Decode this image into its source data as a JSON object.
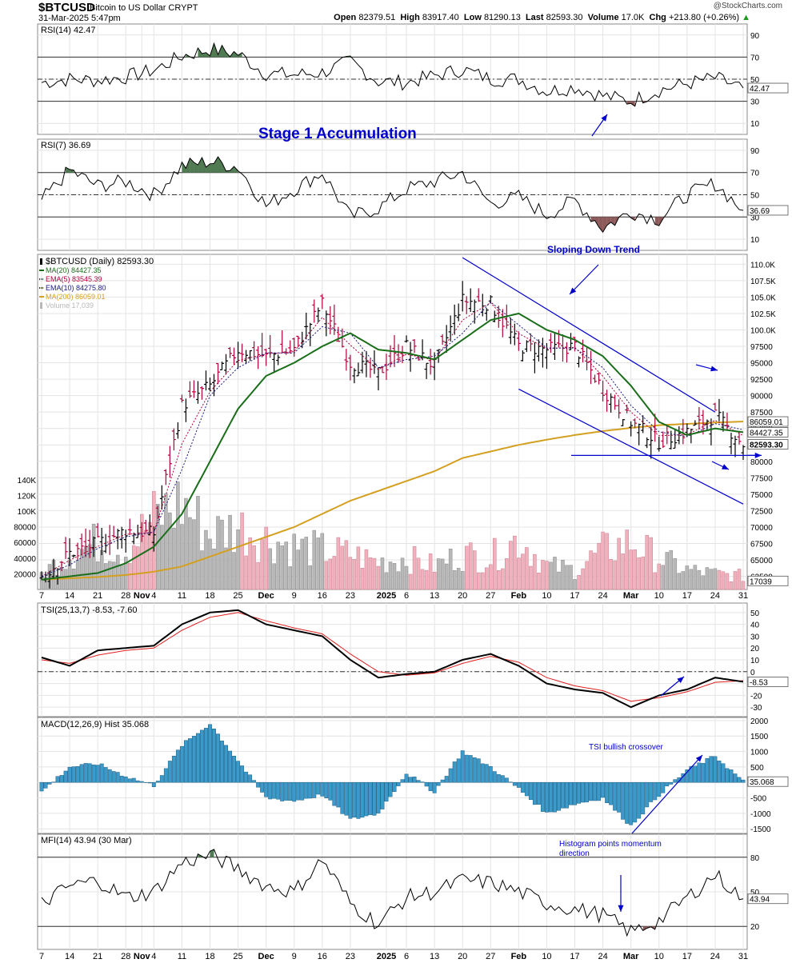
{
  "header": {
    "symbol": "$BTCUSD",
    "description": "Bitcoin to US Dollar  CRYPT",
    "datetime": "31-Mar-2025 5:47pm",
    "credit": "@StockCharts.com",
    "open_label": "Open",
    "open": "82379.51",
    "high_label": "High",
    "high": "83917.40",
    "low_label": "Low",
    "low": "81290.13",
    "last_label": "Last",
    "last": "82593.30",
    "volume_label": "Volume",
    "volume": "17.0K",
    "chg_label": "Chg",
    "chg": "+213.80 (+0.26%)"
  },
  "colors": {
    "up": "#000000",
    "down": "#b0003a",
    "ma20": "#1a6e1a",
    "ma200": "#d4a021",
    "ema5": "#b0003a",
    "ema10": "#1a1a80",
    "tsi": "#000000",
    "tsi_signal": "#e02020",
    "macd_hist": "#3b9ac9",
    "rsi_fill_up": "#4f7a52",
    "rsi_fill_down": "#8c5a5a",
    "vol_up": "#b8b8b8",
    "vol_down": "#f0b0bc",
    "annotation": "#0000cc"
  },
  "annotations": {
    "stage1": "Stage 1 Accumulation",
    "sloping": "Sloping Down Trend",
    "tsi_cross": "TSI bullish crossover",
    "hist1": "Histogram points momentum",
    "hist2": "direction"
  },
  "chart_data": [
    {
      "type": "line",
      "panel": "RSI(14)",
      "legend": "RSI(14) 42.47",
      "last_label": "42.47",
      "ylim": [
        0,
        100
      ],
      "yticks": [
        10,
        30,
        50,
        70,
        90
      ],
      "levels": [
        30,
        50,
        70
      ],
      "x": [
        "Oct 7",
        "Oct 14",
        "Oct 21",
        "Oct 28",
        "Nov 4",
        "Nov 11",
        "Nov 18",
        "Nov 25",
        "Dec 2",
        "Dec 9",
        "Dec 16",
        "Dec 23",
        "Dec 30",
        "Jan 6",
        "Jan 13",
        "Jan 20",
        "Jan 27",
        "Feb 3",
        "Feb 10",
        "Feb 17",
        "Feb 24",
        "Mar 3",
        "Mar 10",
        "Mar 17",
        "Mar 24",
        "Mar 31"
      ],
      "values": [
        47,
        50,
        49,
        52,
        58,
        71,
        77,
        73,
        55,
        54,
        56,
        66,
        48,
        47,
        53,
        59,
        50,
        50,
        39,
        43,
        35,
        30,
        40,
        46,
        51,
        42
      ]
    },
    {
      "type": "line",
      "panel": "RSI(7)",
      "legend": "RSI(7) 36.69",
      "last_label": "36.69",
      "ylim": [
        0,
        100
      ],
      "yticks": [
        10,
        30,
        50,
        70,
        90
      ],
      "levels": [
        30,
        50,
        70
      ],
      "x": [
        "Oct 7",
        "Oct 14",
        "Oct 21",
        "Oct 28",
        "Nov 4",
        "Nov 11",
        "Nov 18",
        "Nov 25",
        "Dec 2",
        "Dec 9",
        "Dec 16",
        "Dec 23",
        "Dec 30",
        "Jan 6",
        "Jan 13",
        "Jan 20",
        "Jan 27",
        "Feb 3",
        "Feb 10",
        "Feb 17",
        "Feb 24",
        "Mar 3",
        "Mar 10",
        "Mar 17",
        "Mar 24",
        "Mar 31"
      ],
      "values": [
        45,
        72,
        58,
        62,
        50,
        76,
        80,
        75,
        40,
        55,
        70,
        30,
        38,
        55,
        62,
        70,
        42,
        48,
        32,
        45,
        20,
        35,
        28,
        50,
        60,
        36
      ]
    },
    {
      "type": "candlestick",
      "panel": "price",
      "legend": [
        {
          "name": "$BTCUSD (Daily) 82593.30",
          "color": "#000000",
          "style": "bar"
        },
        {
          "name": "MA(20) 84427.35",
          "color": "#1a6e1a",
          "style": "solid"
        },
        {
          "name": "EMA(5) 83545.39",
          "color": "#b0003a",
          "style": "dotted"
        },
        {
          "name": "EMA(10) 84275.80",
          "color": "#1a1a80",
          "style": "dotted"
        },
        {
          "name": "MA(200) 86059.01",
          "color": "#d4a021",
          "style": "solid"
        },
        {
          "name": "Volume 17,039",
          "color": "#b8b8b8",
          "style": "bar"
        }
      ],
      "ylim": [
        60500,
        111500
      ],
      "yticks": [
        "110.0K",
        "107.5K",
        "105.0K",
        "102.5K",
        "100.0K",
        "97500",
        "95000",
        "92500",
        "90000",
        "87500",
        "85000",
        "82500",
        "80000",
        "77500",
        "75000",
        "72500",
        "70000",
        "67500",
        "65000",
        "62500"
      ],
      "ytick_values": [
        110000,
        107500,
        105000,
        102500,
        100000,
        97500,
        95000,
        92500,
        90000,
        87500,
        85000,
        82500,
        80000,
        77500,
        75000,
        72500,
        70000,
        67500,
        65000,
        62500
      ],
      "price_labels": {
        "ma200": "86059.01",
        "ma20": "84427.35",
        "last": "82593.30"
      },
      "horizontal_line": 80900,
      "channel_upper": [
        [
          "Jan 20",
          111000
        ],
        [
          "Mar 24",
          87500
        ]
      ],
      "channel_lower": [
        [
          "Feb 3",
          91000
        ],
        [
          "Mar 31",
          73500
        ]
      ],
      "x": [
        "Oct 7",
        "Oct 14",
        "Oct 21",
        "Oct 28",
        "Nov 4",
        "Nov 11",
        "Nov 18",
        "Nov 25",
        "Dec 2",
        "Dec 9",
        "Dec 16",
        "Dec 23",
        "Dec 30",
        "Jan 6",
        "Jan 13",
        "Jan 20",
        "Jan 27",
        "Feb 3",
        "Feb 10",
        "Feb 17",
        "Feb 24",
        "Mar 3",
        "Mar 10",
        "Mar 17",
        "Mar 24",
        "Mar 31"
      ],
      "close": [
        62500,
        66000,
        67500,
        69500,
        69000,
        88500,
        91500,
        97000,
        96000,
        97000,
        104000,
        95000,
        93500,
        97500,
        94500,
        104500,
        104000,
        97500,
        97000,
        97500,
        91000,
        86000,
        83000,
        84500,
        87000,
        82593
      ],
      "ma20": [
        62000,
        62500,
        63000,
        64500,
        67000,
        72000,
        80000,
        88000,
        93000,
        95000,
        97500,
        99500,
        97000,
        96500,
        95500,
        98500,
        101500,
        102500,
        100000,
        98500,
        96000,
        91500,
        86000,
        84000,
        85000,
        84427
      ],
      "ma200": [
        62000,
        62200,
        62400,
        62700,
        63200,
        64000,
        65500,
        67000,
        68500,
        70000,
        72000,
        74000,
        75500,
        77000,
        78500,
        80500,
        81500,
        82500,
        83300,
        84000,
        84600,
        85100,
        85500,
        85700,
        85900,
        86059
      ],
      "volume": [
        20000,
        45000,
        60000,
        50000,
        90000,
        110000,
        70000,
        80000,
        65000,
        55000,
        50000,
        45000,
        35000,
        40000,
        30000,
        45000,
        40000,
        65000,
        30000,
        25000,
        50000,
        60000,
        40000,
        25000,
        20000,
        17039
      ],
      "vol_yticks": [
        "140K",
        "120K",
        "100K",
        "80000",
        "60000",
        "40000",
        "20000"
      ],
      "vol_ytick_values": [
        140000,
        120000,
        100000,
        80000,
        60000,
        40000,
        20000
      ],
      "volume_label": "17039",
      "xticks": [
        {
          "label": "7",
          "x": "Oct 7"
        },
        {
          "label": "14",
          "x": "Oct 14"
        },
        {
          "label": "21",
          "x": "Oct 21"
        },
        {
          "label": "28",
          "x": "Oct 28"
        },
        {
          "label": "Nov",
          "x": "Nov 1",
          "bold": true
        },
        {
          "label": "4",
          "x": "Nov 4"
        },
        {
          "label": "11",
          "x": "Nov 11"
        },
        {
          "label": "18",
          "x": "Nov 18"
        },
        {
          "label": "25",
          "x": "Nov 25"
        },
        {
          "label": "Dec",
          "x": "Dec 2",
          "bold": true
        },
        {
          "label": "9",
          "x": "Dec 9"
        },
        {
          "label": "16",
          "x": "Dec 16"
        },
        {
          "label": "23",
          "x": "Dec 23"
        },
        {
          "label": "2025",
          "x": "Jan 1",
          "bold": true
        },
        {
          "label": "6",
          "x": "Jan 6"
        },
        {
          "label": "13",
          "x": "Jan 13"
        },
        {
          "label": "20",
          "x": "Jan 20"
        },
        {
          "label": "27",
          "x": "Jan 27"
        },
        {
          "label": "Feb",
          "x": "Feb 3",
          "bold": true
        },
        {
          "label": "10",
          "x": "Feb 10"
        },
        {
          "label": "17",
          "x": "Feb 17"
        },
        {
          "label": "24",
          "x": "Feb 24"
        },
        {
          "label": "Mar",
          "x": "Mar 3",
          "bold": true
        },
        {
          "label": "10",
          "x": "Mar 10"
        },
        {
          "label": "17",
          "x": "Mar 17"
        },
        {
          "label": "24",
          "x": "Mar 24"
        },
        {
          "label": "31",
          "x": "Mar 31"
        }
      ]
    },
    {
      "type": "line",
      "panel": "TSI",
      "legend": "TSI(25,13,7) -8.53, -7.60",
      "last_label": "-8.53",
      "ylim": [
        -38,
        58
      ],
      "yticks": [
        50,
        40,
        30,
        20,
        10,
        0,
        -10,
        -20,
        -30
      ],
      "levels": [
        0
      ],
      "x": [
        "Oct 7",
        "Oct 14",
        "Oct 21",
        "Oct 28",
        "Nov 4",
        "Nov 11",
        "Nov 18",
        "Nov 25",
        "Dec 2",
        "Dec 9",
        "Dec 16",
        "Dec 23",
        "Dec 30",
        "Jan 6",
        "Jan 13",
        "Jan 20",
        "Jan 27",
        "Feb 3",
        "Feb 10",
        "Feb 17",
        "Feb 24",
        "Mar 3",
        "Mar 10",
        "Mar 17",
        "Mar 24",
        "Mar 31"
      ],
      "series": [
        {
          "name": "TSI",
          "values": [
            12,
            5,
            18,
            20,
            22,
            40,
            50,
            52,
            40,
            35,
            30,
            10,
            -5,
            -2,
            0,
            10,
            15,
            5,
            -10,
            -15,
            -18,
            -30,
            -20,
            -15,
            -5,
            -8.53
          ]
        },
        {
          "name": "Signal",
          "values": [
            10,
            7,
            14,
            18,
            20,
            35,
            46,
            50,
            43,
            37,
            32,
            15,
            0,
            -3,
            -1,
            7,
            13,
            8,
            -5,
            -12,
            -16,
            -25,
            -22,
            -17,
            -9,
            -7.6
          ]
        }
      ]
    },
    {
      "type": "bar",
      "panel": "MACD",
      "legend": "MACD(12,26,9) Hist 35.068",
      "last_label": "35.068",
      "ylim": [
        -1650,
        2100
      ],
      "yticks": [
        2000,
        1500,
        1000,
        500,
        0,
        -500,
        -1000,
        -1500
      ],
      "x": [
        "Oct 7",
        "Oct 14",
        "Oct 21",
        "Oct 28",
        "Nov 4",
        "Nov 11",
        "Nov 18",
        "Nov 25",
        "Dec 2",
        "Dec 9",
        "Dec 16",
        "Dec 23",
        "Dec 30",
        "Jan 6",
        "Jan 13",
        "Jan 20",
        "Jan 27",
        "Feb 3",
        "Feb 10",
        "Feb 17",
        "Feb 24",
        "Mar 3",
        "Mar 10",
        "Mar 17",
        "Mar 24",
        "Mar 31"
      ],
      "values": [
        -300,
        500,
        600,
        200,
        -100,
        1200,
        1900,
        700,
        -500,
        -600,
        -400,
        -1200,
        -1000,
        300,
        -300,
        1000,
        500,
        -200,
        -1000,
        -700,
        -500,
        -1400,
        -400,
        400,
        850,
        35.068
      ]
    },
    {
      "type": "line",
      "panel": "MFI",
      "legend": "MFI(14) 43.94 (30 Mar)",
      "last_label": "43.94",
      "ylim": [
        0,
        100
      ],
      "yticks": [
        20,
        50,
        80
      ],
      "levels": [
        20,
        80
      ],
      "x": [
        "Oct 7",
        "Oct 14",
        "Oct 21",
        "Oct 28",
        "Nov 4",
        "Nov 11",
        "Nov 18",
        "Nov 25",
        "Dec 2",
        "Dec 9",
        "Dec 16",
        "Dec 23",
        "Dec 30",
        "Jan 6",
        "Jan 13",
        "Jan 20",
        "Jan 27",
        "Feb 3",
        "Feb 10",
        "Feb 17",
        "Feb 24",
        "Mar 3",
        "Mar 10",
        "Mar 17",
        "Mar 24",
        "Mar 31"
      ],
      "values": [
        40,
        55,
        60,
        45,
        50,
        75,
        82,
        70,
        55,
        50,
        78,
        40,
        22,
        45,
        50,
        60,
        58,
        50,
        40,
        35,
        30,
        15,
        25,
        45,
        65,
        43.94
      ]
    }
  ]
}
